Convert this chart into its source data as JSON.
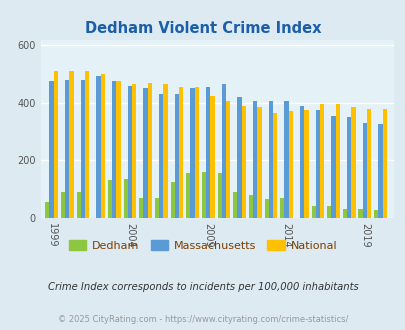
{
  "title": "Dedham Violent Crime Index",
  "title_color": "#1a5fa8",
  "years": [
    1999,
    2000,
    2001,
    2002,
    2003,
    2004,
    2005,
    2006,
    2007,
    2008,
    2009,
    2010,
    2011,
    2012,
    2013,
    2014,
    2015,
    2016,
    2017,
    2018,
    2019,
    2020
  ],
  "dedham": [
    55,
    90,
    90,
    0,
    130,
    135,
    70,
    70,
    125,
    155,
    160,
    155,
    90,
    80,
    65,
    70,
    0,
    40,
    40,
    30,
    30,
    28
  ],
  "massachusetts": [
    475,
    480,
    480,
    495,
    475,
    460,
    450,
    430,
    430,
    450,
    455,
    465,
    420,
    405,
    405,
    405,
    390,
    375,
    355,
    350,
    330,
    325
  ],
  "national": [
    510,
    510,
    510,
    500,
    475,
    465,
    470,
    465,
    455,
    455,
    425,
    405,
    390,
    385,
    365,
    370,
    375,
    395,
    395,
    385,
    380,
    380
  ],
  "x_ticks": [
    1999,
    2004,
    2009,
    2014,
    2019
  ],
  "ylim": [
    0,
    620
  ],
  "yticks": [
    0,
    200,
    400,
    600
  ],
  "bar_width": 0.27,
  "color_dedham": "#8dc63f",
  "color_massachusetts": "#5b9bd5",
  "color_national": "#ffc000",
  "bg_color": "#ddeaf2",
  "plot_bg": "#e4f1f7",
  "grid_color": "#ffffff",
  "legend_labels": [
    "Dedham",
    "Massachusetts",
    "National"
  ],
  "legend_text_color": "#7b3f00",
  "footer_text": "Crime Index corresponds to incidents per 100,000 inhabitants",
  "copyright_text": "© 2025 CityRating.com - https://www.cityrating.com/crime-statistics/",
  "tick_label_color": "#555555",
  "footer_color": "#333333",
  "copyright_color": "#999999",
  "figsize": [
    4.06,
    3.3
  ],
  "dpi": 100
}
